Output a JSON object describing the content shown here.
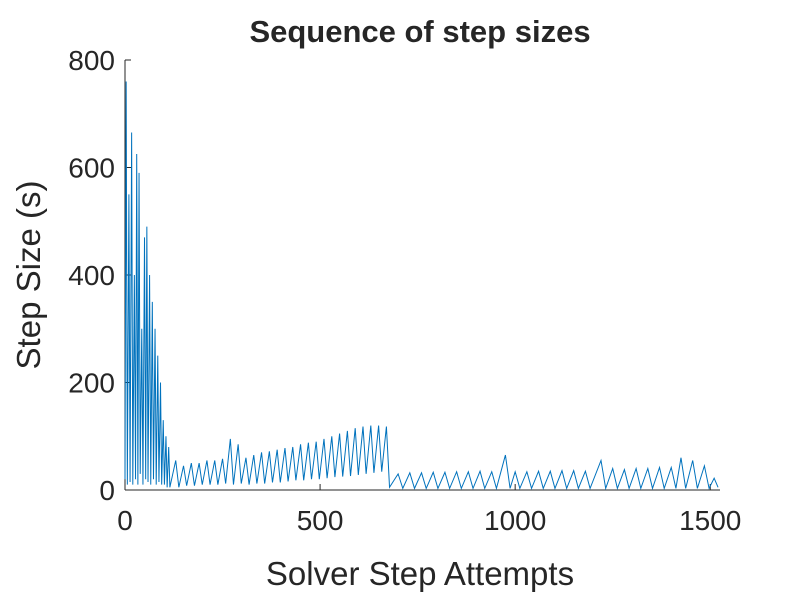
{
  "chart_data": {
    "type": "line",
    "title": "Sequence of step sizes",
    "xlabel": "Solver Step Attempts",
    "ylabel": "Step Size (s)",
    "x": [
      0,
      3,
      6,
      10,
      13,
      17,
      20,
      24,
      27,
      30,
      33,
      36,
      39,
      43,
      46,
      50,
      53,
      56,
      59,
      63,
      66,
      70,
      73,
      77,
      80,
      84,
      87,
      91,
      94,
      98,
      101,
      105,
      108,
      112,
      115,
      130,
      138,
      150,
      158,
      170,
      178,
      190,
      198,
      210,
      218,
      230,
      238,
      250,
      258,
      270,
      278,
      290,
      298,
      310,
      318,
      330,
      338,
      350,
      358,
      370,
      378,
      390,
      398,
      410,
      418,
      430,
      438,
      450,
      458,
      470,
      478,
      490,
      498,
      510,
      518,
      530,
      538,
      550,
      558,
      570,
      578,
      590,
      598,
      610,
      618,
      630,
      638,
      650,
      658,
      670,
      678,
      700,
      712,
      730,
      742,
      760,
      772,
      790,
      802,
      820,
      832,
      850,
      862,
      880,
      892,
      910,
      922,
      940,
      952,
      975,
      987,
      1000,
      1012,
      1030,
      1042,
      1060,
      1072,
      1090,
      1102,
      1120,
      1132,
      1150,
      1162,
      1180,
      1192,
      1220,
      1232,
      1250,
      1262,
      1280,
      1292,
      1310,
      1322,
      1340,
      1352,
      1370,
      1382,
      1400,
      1412,
      1425,
      1437,
      1455,
      1467,
      1485,
      1497,
      1510,
      1520
    ],
    "series": [
      {
        "color": "#0072BD",
        "values": [
          20,
          760,
          10,
          550,
          15,
          665,
          10,
          400,
          20,
          625,
          10,
          590,
          30,
          300,
          10,
          470,
          20,
          490,
          15,
          400,
          10,
          350,
          20,
          300,
          10,
          250,
          15,
          200,
          10,
          130,
          10,
          100,
          5,
          80,
          5,
          55,
          5,
          45,
          8,
          50,
          8,
          50,
          10,
          55,
          10,
          55,
          10,
          58,
          12,
          95,
          10,
          85,
          12,
          60,
          10,
          65,
          12,
          70,
          12,
          72,
          14,
          75,
          14,
          78,
          16,
          80,
          18,
          85,
          18,
          88,
          20,
          90,
          20,
          95,
          22,
          100,
          24,
          105,
          25,
          110,
          26,
          115,
          28,
          118,
          30,
          120,
          32,
          120,
          34,
          118,
          5,
          30,
          3,
          32,
          3,
          32,
          3,
          33,
          3,
          33,
          3,
          34,
          3,
          34,
          3,
          35,
          3,
          34,
          3,
          65,
          3,
          34,
          3,
          34,
          3,
          35,
          3,
          35,
          3,
          36,
          3,
          36,
          3,
          35,
          3,
          55,
          3,
          40,
          3,
          38,
          3,
          40,
          3,
          40,
          3,
          42,
          3,
          42,
          3,
          60,
          3,
          55,
          3,
          45,
          3,
          22,
          5
        ]
      }
    ],
    "xlim": [
      0,
      1525
    ],
    "ylim": [
      0,
      800
    ],
    "xticks": [
      0,
      500,
      1000,
      1500
    ],
    "yticks": [
      0,
      200,
      400,
      600,
      800
    ]
  }
}
